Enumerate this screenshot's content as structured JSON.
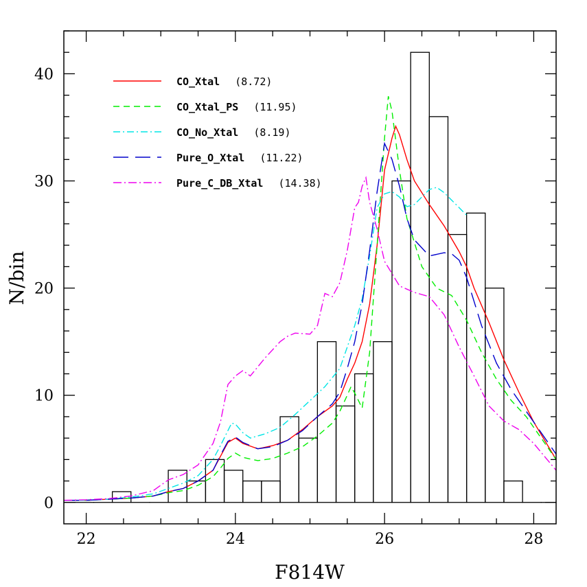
{
  "chart_data": {
    "type": "line",
    "title": "",
    "xlabel": "F814W",
    "ylabel": "N/bin",
    "xlim": [
      21.7,
      28.3
    ],
    "ylim": [
      -2,
      44
    ],
    "xticks": [
      22,
      24,
      26,
      28
    ],
    "xtick_labels": [
      "22",
      "24",
      "26",
      "28"
    ],
    "yticks": [
      0,
      10,
      20,
      30,
      40
    ],
    "ytick_labels": [
      "0",
      "10",
      "20",
      "30",
      "40"
    ],
    "grid": false,
    "legend_position": "top-left",
    "histogram": {
      "bin_edges": [
        21.6,
        21.85,
        22.1,
        22.35,
        22.6,
        22.85,
        23.1,
        23.35,
        23.6,
        23.85,
        24.1,
        24.35,
        24.6,
        24.85,
        25.1,
        25.35,
        25.6,
        25.85,
        26.1,
        26.35,
        26.6,
        26.85,
        27.1,
        27.35,
        27.6,
        27.85,
        28.1,
        28.35
      ],
      "counts": [
        0,
        0,
        0,
        1,
        0,
        0,
        3,
        2,
        4,
        3,
        2,
        2,
        8,
        6,
        15,
        9,
        12,
        15,
        30,
        42,
        36,
        25,
        27,
        20,
        2,
        0,
        0
      ]
    },
    "series": [
      {
        "name": "CO_Xtal",
        "score": "(8.72)",
        "color": "#ff0000",
        "dash": "",
        "x": [
          21.7,
          22.0,
          22.3,
          22.6,
          22.9,
          23.1,
          23.3,
          23.5,
          23.7,
          23.8,
          23.9,
          24.0,
          24.1,
          24.3,
          24.5,
          24.7,
          24.9,
          25.1,
          25.3,
          25.4,
          25.5,
          25.6,
          25.7,
          25.8,
          25.9,
          26.0,
          26.1,
          26.15,
          26.2,
          26.3,
          26.4,
          26.6,
          26.8,
          27.0,
          27.1,
          27.2,
          27.4,
          27.6,
          27.8,
          28.0,
          28.3
        ],
        "y": [
          0.2,
          0.2,
          0.3,
          0.4,
          0.6,
          1.0,
          1.3,
          2.0,
          3.0,
          4.3,
          5.6,
          6.0,
          5.5,
          5.0,
          5.3,
          5.8,
          6.8,
          8.0,
          9.0,
          9.8,
          11.5,
          13.0,
          15.0,
          18.5,
          24.0,
          31.0,
          34.0,
          35.1,
          34.3,
          32.0,
          30.0,
          27.8,
          25.8,
          23.4,
          22.0,
          20.0,
          16.8,
          13.3,
          10.3,
          7.5,
          4.0
        ]
      },
      {
        "name": "CO_Xtal_PS",
        "score": "(11.95)",
        "color": "#00ee00",
        "dash": "9,6",
        "x": [
          21.7,
          22.0,
          22.3,
          22.6,
          22.9,
          23.1,
          23.3,
          23.5,
          23.7,
          23.8,
          23.9,
          24.0,
          24.1,
          24.3,
          24.5,
          24.7,
          24.9,
          25.1,
          25.3,
          25.4,
          25.5,
          25.55,
          25.6,
          25.7,
          25.8,
          25.9,
          26.0,
          26.05,
          26.1,
          26.2,
          26.3,
          26.5,
          26.7,
          26.9,
          27.1,
          27.3,
          27.5,
          27.7,
          27.9,
          28.1,
          28.3
        ],
        "y": [
          0.2,
          0.2,
          0.3,
          0.4,
          0.6,
          0.9,
          1.1,
          1.6,
          2.4,
          3.2,
          4.1,
          4.6,
          4.2,
          3.9,
          4.1,
          4.6,
          5.2,
          6.2,
          7.4,
          8.5,
          10.0,
          10.8,
          10.2,
          8.8,
          14.0,
          24.0,
          34.0,
          37.9,
          36.5,
          31.0,
          26.5,
          22.0,
          20.0,
          19.3,
          17.0,
          14.0,
          11.5,
          9.5,
          8.0,
          6.0,
          4.0
        ]
      },
      {
        "name": "CO_No_Xtal",
        "score": "(8.19)",
        "color": "#00e5e5",
        "dash": "10,4,2,4",
        "x": [
          21.7,
          22.0,
          22.3,
          22.6,
          22.9,
          23.1,
          23.3,
          23.5,
          23.7,
          23.8,
          23.9,
          23.95,
          24.0,
          24.1,
          24.2,
          24.4,
          24.6,
          24.8,
          25.0,
          25.2,
          25.4,
          25.5,
          25.6,
          25.7,
          25.8,
          25.9,
          26.0,
          26.1,
          26.2,
          26.3,
          26.4,
          26.5,
          26.6,
          26.7,
          26.8,
          26.9,
          27.0,
          27.1
        ],
        "y": [
          0.2,
          0.2,
          0.3,
          0.5,
          0.8,
          1.3,
          1.8,
          2.5,
          4.0,
          5.3,
          6.7,
          7.4,
          7.3,
          6.5,
          6.0,
          6.4,
          7.0,
          8.2,
          9.5,
          10.8,
          12.5,
          14.5,
          16.5,
          19.0,
          23.0,
          27.5,
          28.8,
          29.0,
          28.5,
          27.6,
          27.8,
          28.5,
          29.2,
          29.4,
          28.9,
          28.2,
          27.5,
          26.8
        ]
      },
      {
        "name": "Pure_O_Xtal",
        "score": "(11.22)",
        "color": "#0000cc",
        "dash": "22,10",
        "x": [
          21.7,
          22.0,
          22.3,
          22.6,
          22.9,
          23.1,
          23.3,
          23.5,
          23.7,
          23.8,
          23.9,
          24.0,
          24.1,
          24.3,
          24.5,
          24.7,
          24.9,
          25.1,
          25.3,
          25.4,
          25.5,
          25.6,
          25.7,
          25.8,
          25.9,
          26.0,
          26.1,
          26.2,
          26.3,
          26.4,
          26.6,
          26.8,
          26.9,
          27.0,
          27.1,
          27.3,
          27.5,
          27.7,
          27.9,
          28.1,
          28.3
        ],
        "y": [
          0.2,
          0.2,
          0.3,
          0.4,
          0.6,
          1.0,
          1.3,
          2.0,
          3.0,
          4.4,
          5.7,
          6.1,
          5.6,
          5.0,
          5.2,
          5.8,
          6.7,
          8.0,
          9.2,
          10.3,
          12.5,
          15.0,
          18.5,
          23.5,
          29.0,
          33.5,
          32.0,
          29.5,
          26.5,
          24.5,
          23.0,
          23.3,
          23.2,
          22.6,
          21.0,
          16.5,
          13.0,
          10.5,
          8.5,
          6.5,
          4.5
        ]
      },
      {
        "name": "Pure_C_DB_Xtal",
        "score": "(14.38)",
        "color": "#ee00ee",
        "dash": "12,4,2,4",
        "x": [
          21.7,
          22.0,
          22.3,
          22.6,
          22.9,
          23.0,
          23.1,
          23.3,
          23.5,
          23.7,
          23.8,
          23.9,
          24.0,
          24.1,
          24.2,
          24.4,
          24.6,
          24.7,
          24.8,
          25.0,
          25.1,
          25.2,
          25.3,
          25.4,
          25.5,
          25.6,
          25.65,
          25.7,
          25.75,
          25.8,
          25.9,
          26.0,
          26.2,
          26.4,
          26.6,
          26.8,
          27.0,
          27.2,
          27.4,
          27.6,
          27.8,
          28.0,
          28.3
        ],
        "y": [
          0.2,
          0.25,
          0.35,
          0.6,
          1.1,
          1.6,
          2.1,
          2.6,
          3.5,
          5.5,
          7.5,
          11.0,
          11.8,
          12.3,
          11.8,
          13.5,
          15.0,
          15.5,
          15.8,
          15.7,
          16.5,
          19.5,
          19.2,
          20.5,
          23.5,
          27.5,
          28.0,
          29.5,
          30.3,
          28.0,
          25.5,
          22.5,
          20.2,
          19.6,
          19.2,
          17.5,
          14.5,
          11.8,
          9.0,
          7.6,
          6.8,
          5.5,
          3.0
        ]
      }
    ]
  }
}
